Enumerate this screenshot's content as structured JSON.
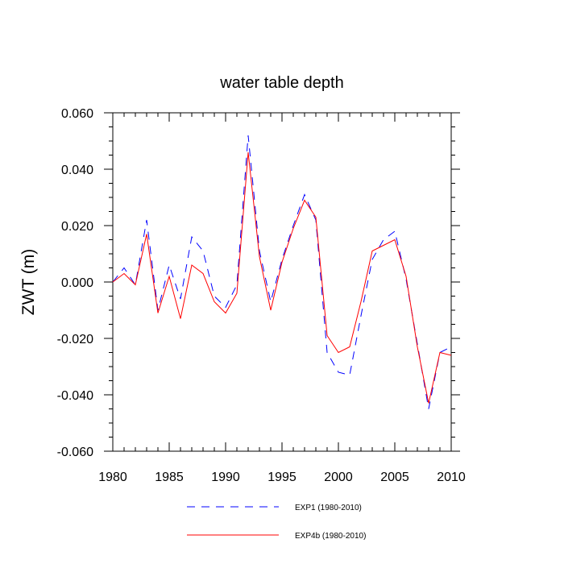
{
  "chart_data": {
    "type": "line",
    "title": "water table depth",
    "xlabel": "",
    "ylabel": "ZWT  (m)",
    "xlim": [
      1980,
      2010
    ],
    "ylim": [
      -0.06,
      0.06
    ],
    "x_ticks": [
      1980,
      1985,
      1990,
      1995,
      2000,
      2005,
      2010
    ],
    "x_tick_labels": [
      "1980",
      "1985",
      "1990",
      "1995",
      "2000",
      "2005",
      "2010"
    ],
    "y_ticks": [
      -0.06,
      -0.04,
      -0.02,
      0.0,
      0.02,
      0.04,
      0.06
    ],
    "y_tick_labels": [
      "-0.060",
      "-0.040",
      "-0.020",
      "0.000",
      "0.020",
      "0.040",
      "0.060"
    ],
    "x": [
      1980,
      1981,
      1982,
      1983,
      1984,
      1985,
      1986,
      1987,
      1988,
      1989,
      1990,
      1991,
      1992,
      1993,
      1994,
      1995,
      1996,
      1997,
      1998,
      1999,
      2000,
      2001,
      2002,
      2003,
      2004,
      2005,
      2006,
      2007,
      2008,
      2009,
      2010
    ],
    "series": [
      {
        "name": "EXP1 (1980-2010)",
        "color": "#0000ff",
        "dash": "dashed",
        "values": [
          0.0,
          0.005,
          -0.001,
          0.022,
          -0.01,
          0.006,
          -0.006,
          0.016,
          0.011,
          -0.005,
          -0.009,
          -0.001,
          0.052,
          0.011,
          -0.007,
          0.008,
          0.02,
          0.031,
          0.022,
          -0.025,
          -0.032,
          -0.033,
          -0.012,
          0.008,
          0.015,
          0.018,
          0.001,
          -0.022,
          -0.045,
          -0.025,
          -0.023
        ]
      },
      {
        "name": "EXP4b (1980-2010)",
        "color": "#ff0000",
        "dash": "solid",
        "values": [
          0.0,
          0.003,
          -0.001,
          0.017,
          -0.011,
          0.002,
          -0.013,
          0.006,
          0.003,
          -0.007,
          -0.011,
          -0.004,
          0.046,
          0.009,
          -0.01,
          0.007,
          0.019,
          0.029,
          0.023,
          -0.019,
          -0.025,
          -0.023,
          -0.007,
          0.011,
          0.013,
          0.015,
          0.002,
          -0.023,
          -0.043,
          -0.025,
          -0.026
        ]
      }
    ],
    "legend_position": "bottom-center",
    "grid": false
  }
}
